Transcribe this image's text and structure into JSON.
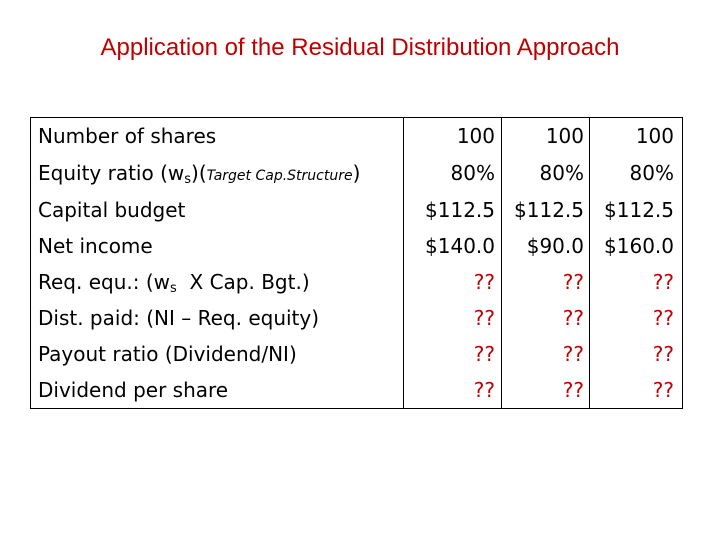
{
  "title": "Application of the Residual Distribution Approach",
  "rows": [
    {
      "label": "Number of shares",
      "values": [
        "100",
        "100",
        "100"
      ]
    },
    {
      "label_main": "Equity ratio (w",
      "label_sub": "s",
      "label_paren": ")(",
      "label_italic": "Target Cap.Structure",
      "label_close": ")",
      "values": [
        "80%",
        "80%",
        "80%"
      ]
    },
    {
      "label": "Capital budget",
      "values": [
        "$112.5",
        "$112.5",
        "$112.5"
      ]
    },
    {
      "label": "Net income",
      "values": [
        "$140.0",
        "$90.0",
        "$160.0"
      ]
    },
    {
      "label_main": "Req. equ.: (w",
      "label_sub": "s",
      "label_rest": "  X Cap. Bgt.)",
      "values": [
        "??",
        "??",
        "??"
      ]
    },
    {
      "label": "Dist. paid: (NI – Req. equity)",
      "values": [
        "??",
        "??",
        "??"
      ]
    },
    {
      "label": "Payout ratio (Dividend/NI)",
      "values": [
        "??",
        "??",
        "??"
      ]
    },
    {
      "label": "Dividend per share",
      "values": [
        "??",
        "??",
        "??"
      ]
    }
  ],
  "colors": {
    "title": "#c00000",
    "unknown": "#c00000"
  }
}
